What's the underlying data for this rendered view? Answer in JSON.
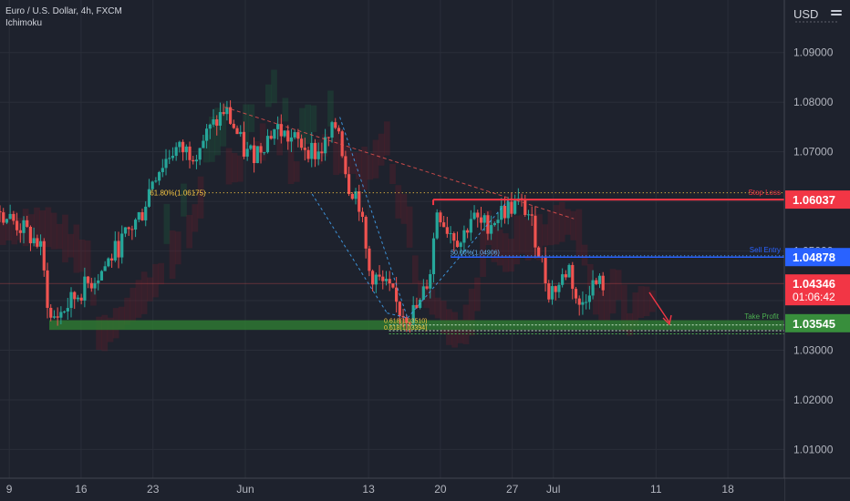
{
  "header": {
    "symbol": "Euro / U.S. Dollar, 4h, FXCM",
    "indicator": "Ichimoku"
  },
  "axis": {
    "currency": "USD"
  },
  "colors": {
    "background": "#1e222d",
    "bull": "#26a69a",
    "bear": "#ef5350",
    "stop": "#f23645",
    "entry": "#2962ff",
    "target": "#4caf50",
    "fib": "#f5c542"
  },
  "chart_data": {
    "type": "candlestick",
    "y_ticks": [
      "1.09000",
      "1.08000",
      "1.07000",
      "1.06000",
      "1.05000",
      "1.04000",
      "1.03000",
      "1.02000",
      "1.01000"
    ],
    "ylim": [
      1.0042,
      1.1006
    ],
    "x_ticks": [
      {
        "label": "9",
        "day": 9
      },
      {
        "label": "16",
        "day": 16
      },
      {
        "label": "23",
        "day": 23
      },
      {
        "label": "Jun",
        "day": 32
      },
      {
        "label": "13",
        "day": 44
      },
      {
        "label": "20",
        "day": 51
      },
      {
        "label": "27",
        "day": 58
      },
      {
        "label": "Jul",
        "day": 62
      },
      {
        "label": "11",
        "day": 72
      },
      {
        "label": "18",
        "day": 79
      }
    ],
    "xlim": [
      8.1,
      84.5
    ],
    "price_labels": [
      {
        "name": "stop-loss",
        "value": "1.06037",
        "price": 1.06037,
        "color": "#f23645"
      },
      {
        "name": "sell-entry",
        "value": "1.04878",
        "price": 1.04878,
        "color": "#2962ff"
      },
      {
        "name": "current",
        "value": "1.04346",
        "price": 1.04346,
        "countdown": "01:06:42",
        "color": "#f23645"
      },
      {
        "name": "take-profit",
        "value": "1.03545",
        "price": 1.03545,
        "color": "#388e3c"
      }
    ],
    "annotations": [
      {
        "text": "Stop Loss",
        "price": 1.06037
      },
      {
        "text": "Sell Entry",
        "price": 1.04878
      },
      {
        "text": "Take Profit",
        "price": 1.03545
      },
      {
        "text": "61.80%(1.06175)",
        "price": 1.06175
      },
      {
        "text": "50.00%(1.04906)",
        "price": 1.04906
      },
      {
        "text": "0.618(1.03510)",
        "price": 1.0351
      },
      {
        "text": "0.618(1.03394)",
        "price": 1.03394
      }
    ],
    "path": [
      [
        8.1,
        1.058
      ],
      [
        10,
        1.055
      ],
      [
        12,
        1.051
      ],
      [
        13,
        1.036
      ],
      [
        14,
        1.0375
      ],
      [
        16,
        1.042
      ],
      [
        18,
        1.046
      ],
      [
        20,
        1.052
      ],
      [
        21,
        1.055
      ],
      [
        22,
        1.058
      ],
      [
        23,
        1.065
      ],
      [
        25,
        1.0705
      ],
      [
        27,
        1.07
      ],
      [
        29,
        1.0755
      ],
      [
        30,
        1.0785
      ],
      [
        31,
        1.0745
      ],
      [
        32,
        1.0695
      ],
      [
        33,
        1.07
      ],
      [
        34,
        1.0725
      ],
      [
        35,
        1.075
      ],
      [
        36,
        1.073
      ],
      [
        38,
        1.071
      ],
      [
        39,
        1.0695
      ],
      [
        40,
        1.072
      ],
      [
        41,
        1.076
      ],
      [
        42,
        1.0635
      ],
      [
        43,
        1.061
      ],
      [
        44,
        1.046
      ],
      [
        46,
        1.042
      ],
      [
        47,
        1.038
      ],
      [
        48,
        1.037
      ],
      [
        49,
        1.039
      ],
      [
        50,
        1.046
      ],
      [
        50.7,
        1.059
      ],
      [
        51.5,
        1.055
      ],
      [
        53,
        1.052
      ],
      [
        54,
        1.057
      ],
      [
        55,
        1.055
      ],
      [
        56,
        1.056
      ],
      [
        57,
        1.058
      ],
      [
        58.5,
        1.0595
      ],
      [
        59.5,
        1.058
      ],
      [
        60.5,
        1.051
      ],
      [
        61.5,
        1.042
      ],
      [
        62.5,
        1.043
      ],
      [
        63.5,
        1.047
      ],
      [
        64.5,
        1.038
      ],
      [
        65.5,
        1.043
      ],
      [
        67,
        1.0435
      ]
    ]
  }
}
